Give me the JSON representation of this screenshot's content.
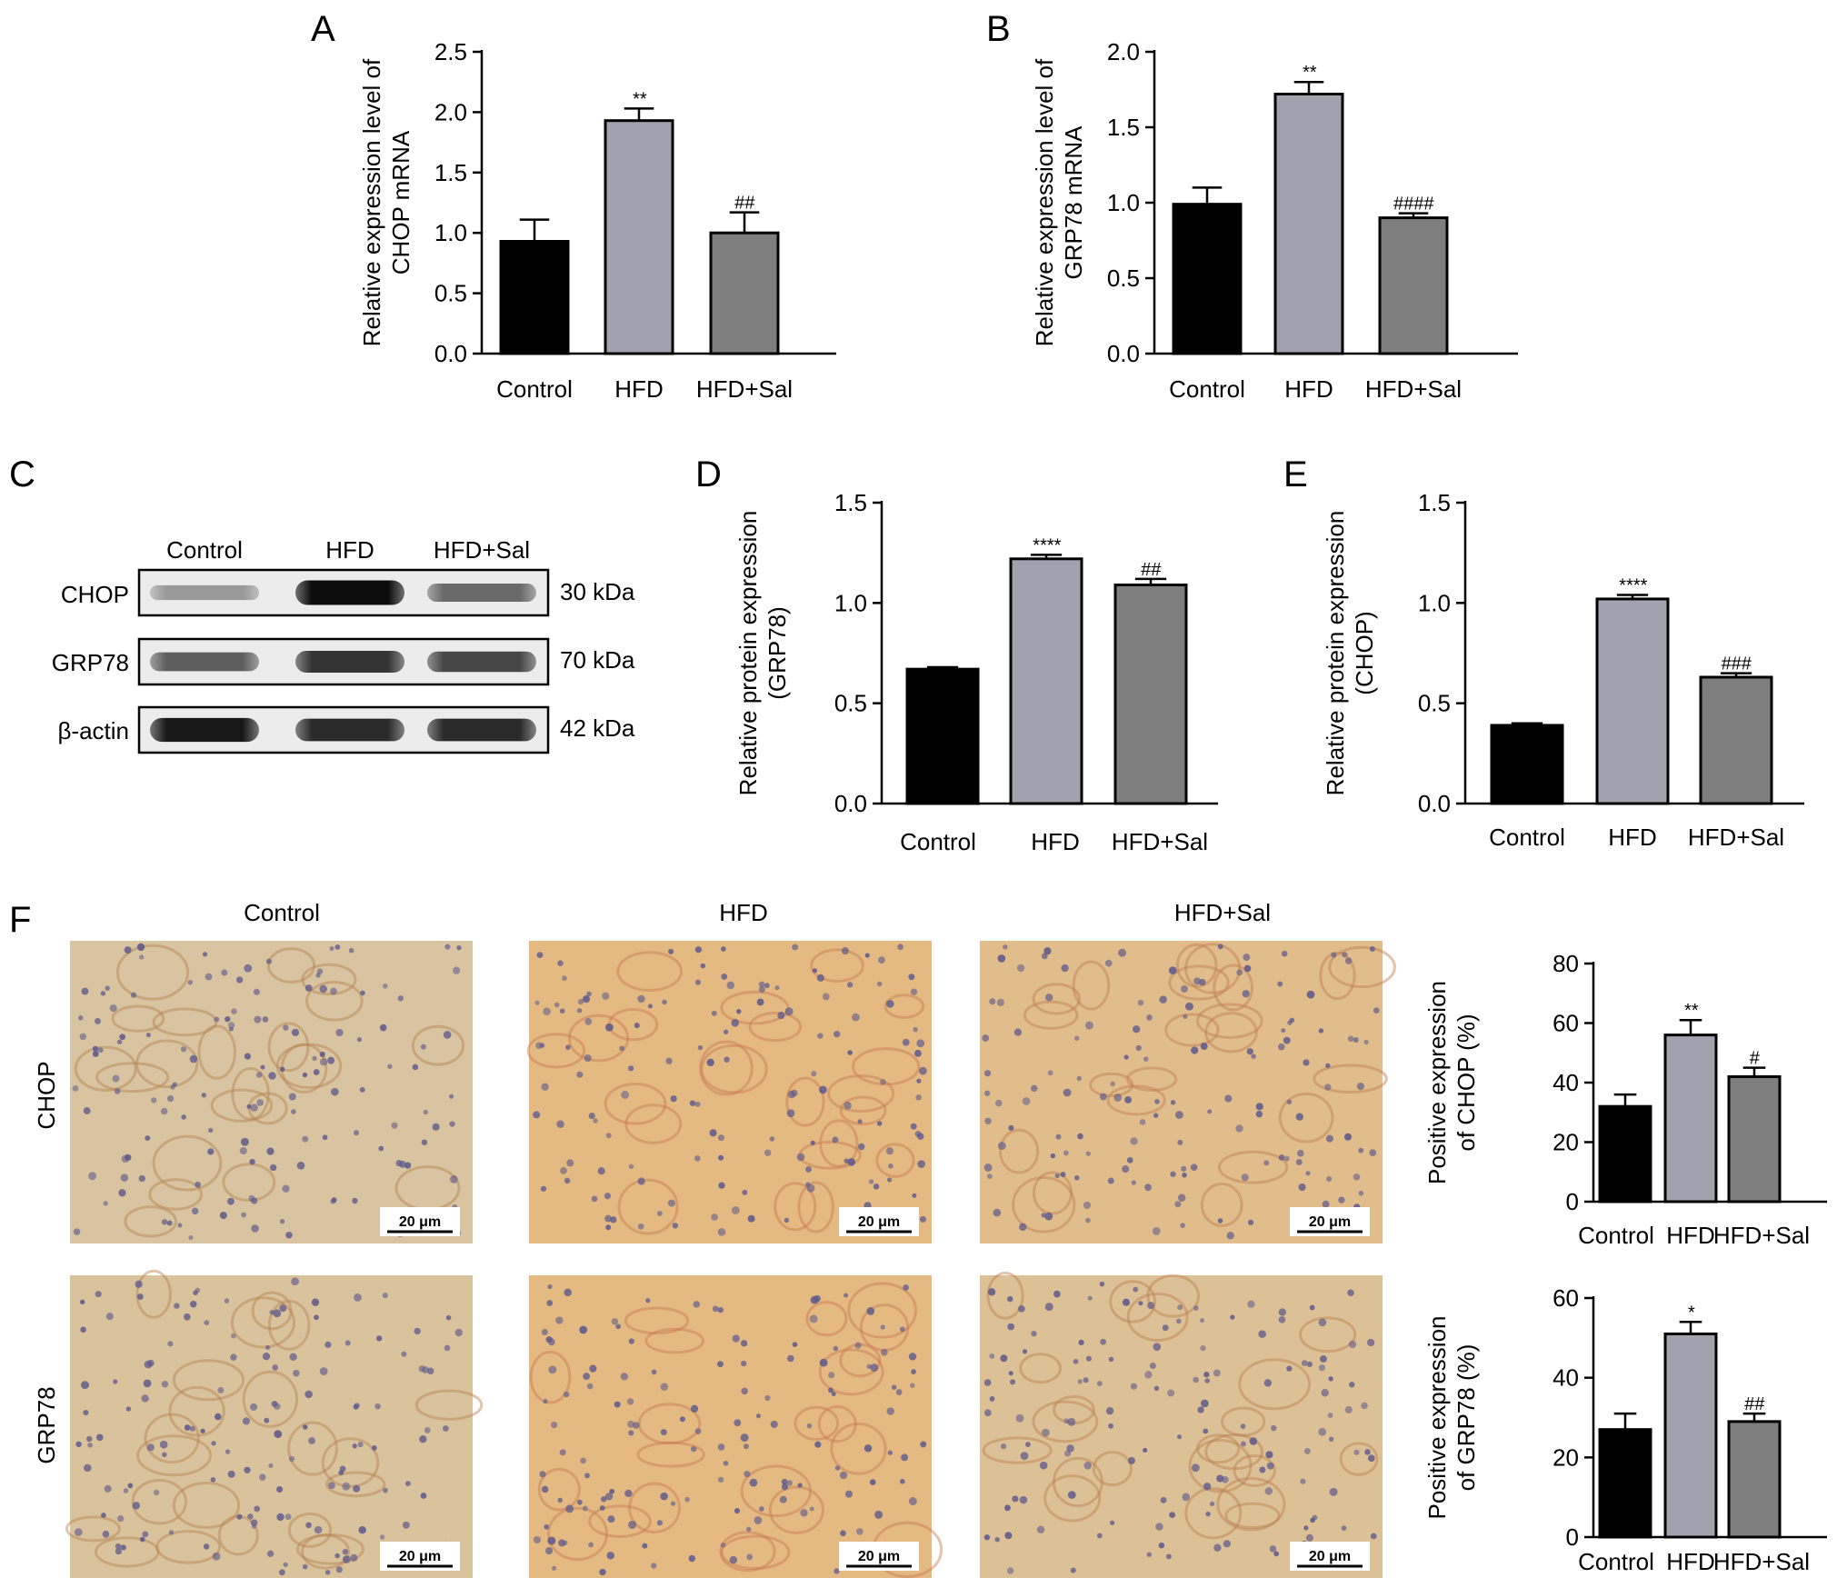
{
  "figure": {
    "panel_letters": {
      "A": "A",
      "B": "B",
      "C": "C",
      "D": "D",
      "E": "E",
      "F": "F"
    },
    "colors": {
      "control": "#000000",
      "hfd": "#a2a2ae",
      "hfd_sal": "#7e7e7e",
      "tissue": "#d9c3a0",
      "nuclei": "#5f5a8c"
    }
  },
  "chart_data": [
    {
      "id": "A",
      "type": "bar",
      "categories": [
        "Control",
        "HFD",
        "HFD+Sal"
      ],
      "values": [
        0.93,
        1.93,
        1.0
      ],
      "errors": [
        0.18,
        0.1,
        0.17
      ],
      "annotations": [
        "",
        "**",
        "##"
      ],
      "ylabel": [
        "Relative expression level of",
        "CHOP mRNA"
      ],
      "ylim": [
        0,
        2.5
      ],
      "yticks": [
        "0.0",
        "0.5",
        "1.0",
        "1.5",
        "2.0",
        "2.5"
      ]
    },
    {
      "id": "B",
      "type": "bar",
      "categories": [
        "Control",
        "HFD",
        "HFD+Sal"
      ],
      "values": [
        0.99,
        1.72,
        0.9
      ],
      "errors": [
        0.11,
        0.08,
        0.03
      ],
      "annotations": [
        "",
        "**",
        "####"
      ],
      "ylabel": [
        "Relative expression level of",
        "GRP78 mRNA"
      ],
      "ylim": [
        0,
        2.0
      ],
      "yticks": [
        "0.0",
        "0.5",
        "1.0",
        "1.5",
        "2.0"
      ]
    },
    {
      "id": "D",
      "type": "bar",
      "categories": [
        "Control",
        "HFD",
        "HFD+Sal"
      ],
      "values": [
        0.67,
        1.22,
        1.09
      ],
      "errors": [
        0.01,
        0.02,
        0.03
      ],
      "annotations": [
        "",
        "****",
        "##"
      ],
      "ylabel": [
        "Relative protein expression",
        "(GRP78)"
      ],
      "ylim": [
        0,
        1.5
      ],
      "yticks": [
        "0.0",
        "0.5",
        "1.0",
        "1.5"
      ]
    },
    {
      "id": "E",
      "type": "bar",
      "categories": [
        "Control",
        "HFD",
        "HFD+Sal"
      ],
      "values": [
        0.39,
        1.02,
        0.63
      ],
      "errors": [
        0.01,
        0.02,
        0.02
      ],
      "annotations": [
        "",
        "****",
        "###"
      ],
      "ylabel": [
        "Relative protein expression",
        "(CHOP)"
      ],
      "ylim": [
        0,
        1.5
      ],
      "yticks": [
        "0.0",
        "0.5",
        "1.0",
        "1.5"
      ]
    },
    {
      "id": "F1",
      "type": "bar",
      "categories": [
        "Control",
        "HFD",
        "HFD+Sal"
      ],
      "values": [
        32,
        56,
        42
      ],
      "errors": [
        4,
        5,
        3
      ],
      "annotations": [
        "",
        "**",
        "#"
      ],
      "ylabel": [
        "Positive expression",
        "of CHOP (%)"
      ],
      "ylim": [
        0,
        80
      ],
      "yticks": [
        "0",
        "20",
        "40",
        "60",
        "80"
      ]
    },
    {
      "id": "F2",
      "type": "bar",
      "categories": [
        "Control",
        "HFD",
        "HFD+Sal"
      ],
      "values": [
        27,
        51,
        29
      ],
      "errors": [
        4,
        3,
        2
      ],
      "annotations": [
        "",
        "*",
        "##"
      ],
      "ylabel": [
        "Positive expression",
        "of GRP78 (%)"
      ],
      "ylim": [
        0,
        60
      ],
      "yticks": [
        "0",
        "20",
        "40",
        "60"
      ]
    }
  ],
  "western_blot": {
    "columns": [
      "Control",
      "HFD",
      "HFD+Sal"
    ],
    "rows": [
      {
        "protein": "CHOP",
        "size": "30 kDa",
        "intensity": [
          0.35,
          0.95,
          0.55
        ]
      },
      {
        "protein": "GRP78",
        "size": "70 kDa",
        "intensity": [
          0.6,
          0.78,
          0.7
        ]
      },
      {
        "protein": "β-actin",
        "size": "42 kDa",
        "intensity": [
          0.9,
          0.82,
          0.82
        ]
      }
    ]
  },
  "ihc": {
    "columns": [
      "Control",
      "HFD",
      "HFD+Sal"
    ],
    "rows": [
      "CHOP",
      "GRP78"
    ],
    "scale_bar": "20 μm"
  }
}
